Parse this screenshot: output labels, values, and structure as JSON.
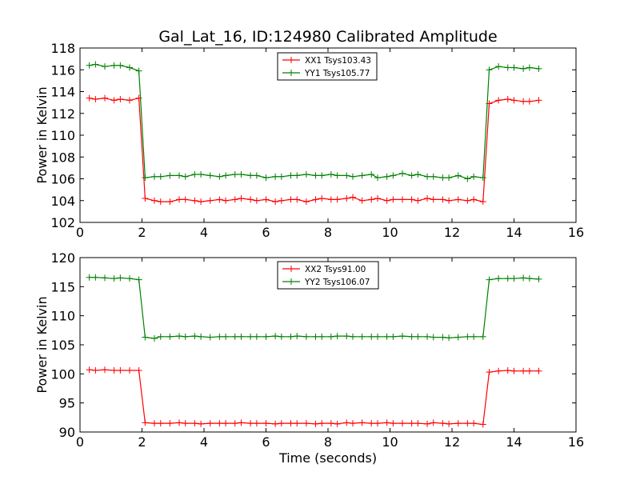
{
  "chart_data": [
    {
      "type": "line",
      "title": "Gal_Lat_16, ID:124980 Calibrated Amplitude",
      "xlabel": "",
      "ylabel": "Power in Kelvin",
      "xlim": [
        0,
        16
      ],
      "ylim": [
        102,
        118
      ],
      "xticks": [
        0,
        2,
        4,
        6,
        8,
        10,
        12,
        14,
        16
      ],
      "yticks": [
        102,
        104,
        106,
        108,
        110,
        112,
        114,
        116,
        118
      ],
      "xtick_labels": [
        "0",
        "2",
        "4",
        "6",
        "8",
        "10",
        "12",
        "14",
        "16"
      ],
      "ytick_labels": [
        "102",
        "104",
        "106",
        "108",
        "110",
        "112",
        "114",
        "116",
        "118"
      ],
      "grid": false,
      "legend_position": "top-center",
      "x": [
        0.3,
        0.5,
        0.8,
        1.1,
        1.3,
        1.6,
        1.9,
        2.1,
        2.4,
        2.6,
        2.9,
        3.2,
        3.4,
        3.7,
        3.9,
        4.2,
        4.5,
        4.7,
        5.0,
        5.2,
        5.5,
        5.7,
        6.0,
        6.3,
        6.5,
        6.8,
        7.0,
        7.3,
        7.6,
        7.8,
        8.1,
        8.3,
        8.6,
        8.8,
        9.1,
        9.4,
        9.6,
        9.9,
        10.1,
        10.4,
        10.7,
        10.9,
        11.2,
        11.4,
        11.7,
        11.9,
        12.2,
        12.5,
        12.7,
        13.0,
        13.2,
        13.5,
        13.8,
        14.0,
        14.3,
        14.5,
        14.8
      ],
      "series": [
        {
          "name": "XX1 Tsys103.43",
          "color": "#ff0000",
          "values": [
            113.4,
            113.3,
            113.4,
            113.2,
            113.3,
            113.2,
            113.4,
            104.2,
            104.0,
            103.9,
            103.9,
            104.1,
            104.1,
            104.0,
            103.9,
            104.0,
            104.1,
            104.0,
            104.1,
            104.2,
            104.1,
            104.0,
            104.1,
            103.9,
            104.0,
            104.1,
            104.1,
            103.9,
            104.1,
            104.2,
            104.1,
            104.1,
            104.2,
            104.3,
            104.0,
            104.1,
            104.2,
            104.0,
            104.1,
            104.1,
            104.1,
            104.0,
            104.2,
            104.1,
            104.1,
            104.0,
            104.1,
            104.0,
            104.1,
            103.9,
            112.9,
            113.2,
            113.3,
            113.2,
            113.1,
            113.1,
            113.2
          ]
        },
        {
          "name": "YY1 Tsys105.77",
          "color": "#008000",
          "values": [
            116.4,
            116.5,
            116.3,
            116.4,
            116.4,
            116.2,
            115.9,
            106.1,
            106.2,
            106.2,
            106.3,
            106.3,
            106.2,
            106.4,
            106.4,
            106.3,
            106.2,
            106.3,
            106.4,
            106.4,
            106.3,
            106.3,
            106.1,
            106.2,
            106.2,
            106.3,
            106.3,
            106.4,
            106.3,
            106.3,
            106.4,
            106.3,
            106.3,
            106.2,
            106.3,
            106.4,
            106.1,
            106.2,
            106.3,
            106.5,
            106.3,
            106.4,
            106.2,
            106.2,
            106.1,
            106.1,
            106.3,
            106.0,
            106.2,
            106.1,
            116.0,
            116.3,
            116.2,
            116.2,
            116.1,
            116.2,
            116.1
          ]
        }
      ]
    },
    {
      "type": "line",
      "title": "",
      "xlabel": "Time (seconds)",
      "ylabel": "Power in Kelvin",
      "xlim": [
        0,
        16
      ],
      "ylim": [
        90,
        120
      ],
      "xticks": [
        0,
        2,
        4,
        6,
        8,
        10,
        12,
        14,
        16
      ],
      "yticks": [
        90,
        95,
        100,
        105,
        110,
        115,
        120
      ],
      "xtick_labels": [
        "0",
        "2",
        "4",
        "6",
        "8",
        "10",
        "12",
        "14",
        "16"
      ],
      "ytick_labels": [
        "90",
        "95",
        "100",
        "105",
        "110",
        "115",
        "120"
      ],
      "grid": false,
      "legend_position": "top-center",
      "x": [
        0.3,
        0.5,
        0.8,
        1.1,
        1.3,
        1.6,
        1.9,
        2.1,
        2.4,
        2.6,
        2.9,
        3.2,
        3.4,
        3.7,
        3.9,
        4.2,
        4.5,
        4.7,
        5.0,
        5.2,
        5.5,
        5.7,
        6.0,
        6.3,
        6.5,
        6.8,
        7.0,
        7.3,
        7.6,
        7.8,
        8.1,
        8.3,
        8.6,
        8.8,
        9.1,
        9.4,
        9.6,
        9.9,
        10.1,
        10.4,
        10.7,
        10.9,
        11.2,
        11.4,
        11.7,
        11.9,
        12.2,
        12.5,
        12.7,
        13.0,
        13.2,
        13.5,
        13.8,
        14.0,
        14.3,
        14.5,
        14.8
      ],
      "series": [
        {
          "name": "XX2 Tsys91.00",
          "color": "#ff0000",
          "values": [
            100.7,
            100.6,
            100.7,
            100.6,
            100.6,
            100.6,
            100.6,
            91.6,
            91.5,
            91.5,
            91.5,
            91.6,
            91.5,
            91.5,
            91.4,
            91.5,
            91.5,
            91.5,
            91.5,
            91.6,
            91.5,
            91.5,
            91.5,
            91.4,
            91.5,
            91.5,
            91.5,
            91.5,
            91.4,
            91.5,
            91.5,
            91.4,
            91.6,
            91.5,
            91.6,
            91.5,
            91.5,
            91.6,
            91.5,
            91.5,
            91.5,
            91.5,
            91.4,
            91.6,
            91.5,
            91.4,
            91.5,
            91.5,
            91.5,
            91.3,
            100.3,
            100.5,
            100.6,
            100.5,
            100.5,
            100.5,
            100.5
          ]
        },
        {
          "name": "YY2 Tsys106.07",
          "color": "#008000",
          "values": [
            116.6,
            116.6,
            116.5,
            116.4,
            116.5,
            116.4,
            116.2,
            106.3,
            106.1,
            106.4,
            106.4,
            106.5,
            106.4,
            106.5,
            106.4,
            106.3,
            106.4,
            106.4,
            106.4,
            106.4,
            106.4,
            106.4,
            106.4,
            106.5,
            106.4,
            106.4,
            106.5,
            106.4,
            106.4,
            106.4,
            106.4,
            106.5,
            106.5,
            106.4,
            106.4,
            106.4,
            106.4,
            106.4,
            106.4,
            106.5,
            106.4,
            106.4,
            106.4,
            106.3,
            106.3,
            106.2,
            106.3,
            106.4,
            106.4,
            106.4,
            116.2,
            116.4,
            116.4,
            116.4,
            116.5,
            116.4,
            116.3
          ]
        }
      ]
    }
  ]
}
